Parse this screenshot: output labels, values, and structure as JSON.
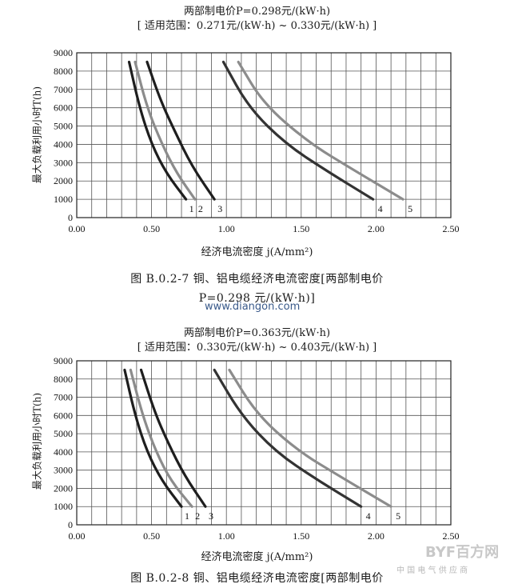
{
  "charts": [
    {
      "title_line1": "两部制电价P=0.298元/(kW·h)",
      "title_line2": "[ 适用范围：0.271元/(kW·h) ~ 0.330元/(kW·h) ]",
      "ylabel": "最大负载利用小时T(h)",
      "xlabel": "经济电流密度 j(A/mm²)",
      "caption_line1": "图 B.0.2-7   铜、铝电缆经济电流密度[两部制电价",
      "caption_line2": "P=0.298 元/(kW·h)]"
    },
    {
      "title_line1": "两部制电价P=0.363元/(kW·h)",
      "title_line2": "[ 适用范围：0.330元/(kW·h) ~ 0.403元/(kW·h) ]",
      "ylabel": "最大负载利用小时T(h)",
      "xlabel": "经济电流密度 j(A/mm²)",
      "caption_line1": "图 B.0.2-8   铜、铝电缆经济电流密度[两部制电价"
    }
  ],
  "watermark": "www.diangon.com",
  "logo_text": "BYF百方网",
  "logo_sub": "中 国 电 气 供 应 商",
  "chart_data": [
    {
      "type": "line",
      "xlim": [
        0,
        2.5
      ],
      "ylim": [
        0,
        9000
      ],
      "x_ticks": [
        "0.00",
        "0.50",
        "1.00",
        "1.50",
        "2.00",
        "2.50"
      ],
      "y_ticks": [
        "0",
        "1000",
        "2000",
        "3000",
        "4000",
        "5000",
        "6000",
        "7000",
        "8000",
        "9000"
      ],
      "grid": true,
      "series": [
        {
          "name": "1",
          "color": "#1e1e1e",
          "points": [
            [
              0.35,
              8500
            ],
            [
              0.42,
              6000
            ],
            [
              0.5,
              4000
            ],
            [
              0.6,
              2400
            ],
            [
              0.73,
              1000
            ]
          ]
        },
        {
          "name": "2",
          "color": "#8c8c8c",
          "points": [
            [
              0.39,
              8500
            ],
            [
              0.47,
              6000
            ],
            [
              0.57,
              4000
            ],
            [
              0.67,
              2400
            ],
            [
              0.79,
              1000
            ]
          ]
        },
        {
          "name": "3",
          "color": "#1e1e1e",
          "points": [
            [
              0.47,
              8500
            ],
            [
              0.56,
              6400
            ],
            [
              0.65,
              4800
            ],
            [
              0.77,
              2800
            ],
            [
              0.92,
              1000
            ]
          ]
        },
        {
          "name": "4",
          "color": "#333333",
          "points": [
            [
              0.98,
              8500
            ],
            [
              1.15,
              6000
            ],
            [
              1.4,
              4000
            ],
            [
              1.68,
              2500
            ],
            [
              1.98,
              1000
            ]
          ]
        },
        {
          "name": "5",
          "color": "#8c8c8c",
          "points": [
            [
              1.08,
              8500
            ],
            [
              1.25,
              6200
            ],
            [
              1.55,
              4100
            ],
            [
              1.85,
              2600
            ],
            [
              2.18,
              1000
            ]
          ]
        }
      ],
      "curve_labels": [
        "1",
        "2",
        "3",
        "4",
        "5"
      ]
    },
    {
      "type": "line",
      "xlim": [
        0,
        2.5
      ],
      "ylim": [
        0,
        9000
      ],
      "x_ticks": [
        "0.00",
        "0.50",
        "1.00",
        "1.50",
        "2.00",
        "2.50"
      ],
      "y_ticks": [
        "0",
        "1000",
        "2000",
        "3000",
        "4000",
        "5000",
        "6000",
        "7000",
        "8000",
        "9000"
      ],
      "grid": true,
      "series": [
        {
          "name": "1",
          "color": "#1e1e1e",
          "points": [
            [
              0.32,
              8500
            ],
            [
              0.39,
              6000
            ],
            [
              0.47,
              4000
            ],
            [
              0.57,
              2400
            ],
            [
              0.7,
              1000
            ]
          ]
        },
        {
          "name": "2",
          "color": "#8c8c8c",
          "points": [
            [
              0.36,
              8500
            ],
            [
              0.44,
              6000
            ],
            [
              0.53,
              4000
            ],
            [
              0.63,
              2400
            ],
            [
              0.77,
              1000
            ]
          ]
        },
        {
          "name": "3",
          "color": "#1e1e1e",
          "points": [
            [
              0.43,
              8500
            ],
            [
              0.52,
              6200
            ],
            [
              0.61,
              4500
            ],
            [
              0.72,
              2700
            ],
            [
              0.86,
              1000
            ]
          ]
        },
        {
          "name": "4",
          "color": "#333333",
          "points": [
            [
              0.92,
              8500
            ],
            [
              1.1,
              6000
            ],
            [
              1.33,
              4000
            ],
            [
              1.6,
              2500
            ],
            [
              1.9,
              1000
            ]
          ]
        },
        {
          "name": "5",
          "color": "#8c8c8c",
          "points": [
            [
              1.02,
              8500
            ],
            [
              1.2,
              6100
            ],
            [
              1.47,
              4100
            ],
            [
              1.77,
              2600
            ],
            [
              2.1,
              1000
            ]
          ]
        }
      ],
      "curve_labels": [
        "1",
        "2",
        "3",
        "4",
        "5"
      ]
    }
  ]
}
